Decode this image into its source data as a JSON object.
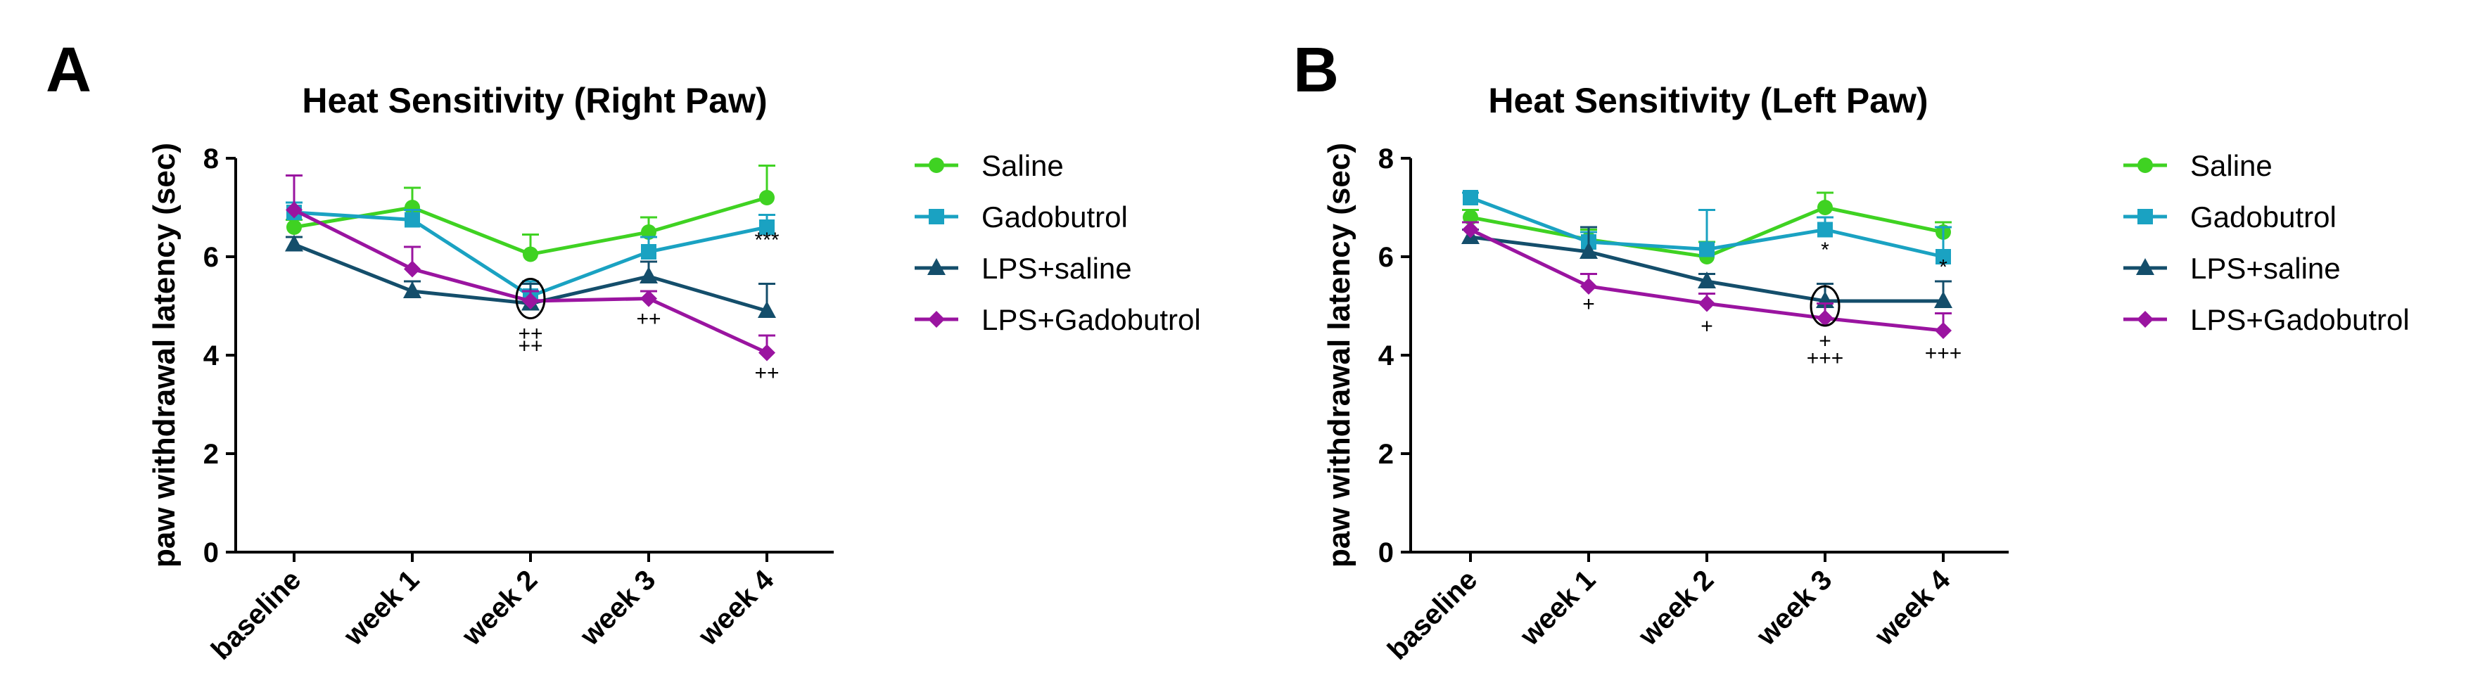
{
  "chart_data": [
    {
      "panel_label": "A",
      "type": "line",
      "title": "Heat Sensitivity (Right Paw)",
      "xlabel": "",
      "ylabel": "paw withdrawal latency (sec)",
      "ylim": [
        0,
        8
      ],
      "yticks": [
        "0",
        "2",
        "4",
        "6",
        "8"
      ],
      "categories": [
        "baseline",
        "week 1",
        "week 2",
        "week 3",
        "week 4"
      ],
      "legend_position": "right",
      "series": [
        {
          "name": "Saline",
          "color": "#3fd222",
          "marker": "circle",
          "values": [
            6.6,
            7.0,
            6.05,
            6.5,
            7.2
          ],
          "errors": [
            0.15,
            0.4,
            0.4,
            0.3,
            0.65
          ]
        },
        {
          "name": "Gadobutrol",
          "color": "#1aa2c2",
          "marker": "square",
          "values": [
            6.9,
            6.75,
            5.2,
            6.1,
            6.6
          ],
          "errors": [
            0.2,
            0.2,
            0.3,
            0.3,
            0.25
          ]
        },
        {
          "name": "LPS+saline",
          "color": "#144e6b",
          "marker": "triangle",
          "values": [
            6.25,
            5.3,
            5.05,
            5.6,
            4.9
          ],
          "errors": [
            0.15,
            0.2,
            0.4,
            0.3,
            0.55
          ]
        },
        {
          "name": "LPS+Gadobutrol",
          "color": "#9a14a0",
          "marker": "diamond",
          "values": [
            6.95,
            5.75,
            5.1,
            5.15,
            4.05
          ],
          "errors": [
            0.7,
            0.45,
            0.2,
            0.15,
            0.35
          ]
        }
      ],
      "annotations": [
        {
          "text": "***",
          "x": "week 4",
          "y": 6.2
        },
        {
          "text": "++",
          "x": "week 2",
          "y": 4.3
        },
        {
          "text": "++",
          "x": "week 2",
          "y": 4.05
        },
        {
          "text": "++",
          "x": "week 3",
          "y": 4.6
        },
        {
          "text": "++",
          "x": "week 4",
          "y": 3.5
        }
      ],
      "circled": {
        "x": "week 2",
        "y": 5.15
      }
    },
    {
      "panel_label": "B",
      "type": "line",
      "title": "Heat Sensitivity (Left Paw)",
      "xlabel": "",
      "ylabel": "paw withdrawal latency (sec)",
      "ylim": [
        0,
        8
      ],
      "yticks": [
        "0",
        "2",
        "4",
        "6",
        "8"
      ],
      "categories": [
        "baseline",
        "week 1",
        "week 2",
        "week 3",
        "week 4"
      ],
      "legend_position": "right",
      "series": [
        {
          "name": "Saline",
          "color": "#3fd222",
          "marker": "circle",
          "values": [
            6.8,
            6.35,
            6.0,
            7.0,
            6.5
          ],
          "errors": [
            0.15,
            0.2,
            0.3,
            0.3,
            0.2
          ]
        },
        {
          "name": "Gadobutrol",
          "color": "#1aa2c2",
          "marker": "square",
          "values": [
            7.2,
            6.3,
            6.15,
            6.55,
            6.0
          ],
          "errors": [
            0.1,
            0.2,
            0.8,
            0.25,
            0.6
          ]
        },
        {
          "name": "LPS+saline",
          "color": "#144e6b",
          "marker": "triangle",
          "values": [
            6.4,
            6.1,
            5.5,
            5.1,
            5.1
          ],
          "errors": [
            0.15,
            0.5,
            0.15,
            0.35,
            0.4
          ]
        },
        {
          "name": "LPS+Gadobutrol",
          "color": "#9a14a0",
          "marker": "diamond",
          "values": [
            6.55,
            5.4,
            5.05,
            4.75,
            4.5
          ],
          "errors": [
            0.15,
            0.25,
            0.2,
            0.3,
            0.35
          ]
        }
      ],
      "annotations": [
        {
          "text": "*",
          "x": "week 3",
          "y": 6.0
        },
        {
          "text": "*",
          "x": "week 4",
          "y": 5.65
        },
        {
          "text": "+",
          "x": "week 1",
          "y": 4.9
        },
        {
          "text": "+",
          "x": "week 2",
          "y": 4.45
        },
        {
          "text": "+",
          "x": "week 3",
          "y": 4.15
        },
        {
          "text": "+++",
          "x": "week 3",
          "y": 3.8
        },
        {
          "text": "+++",
          "x": "week 4",
          "y": 3.9
        }
      ],
      "circled": {
        "x": "week 3",
        "y": 5.0
      }
    }
  ]
}
